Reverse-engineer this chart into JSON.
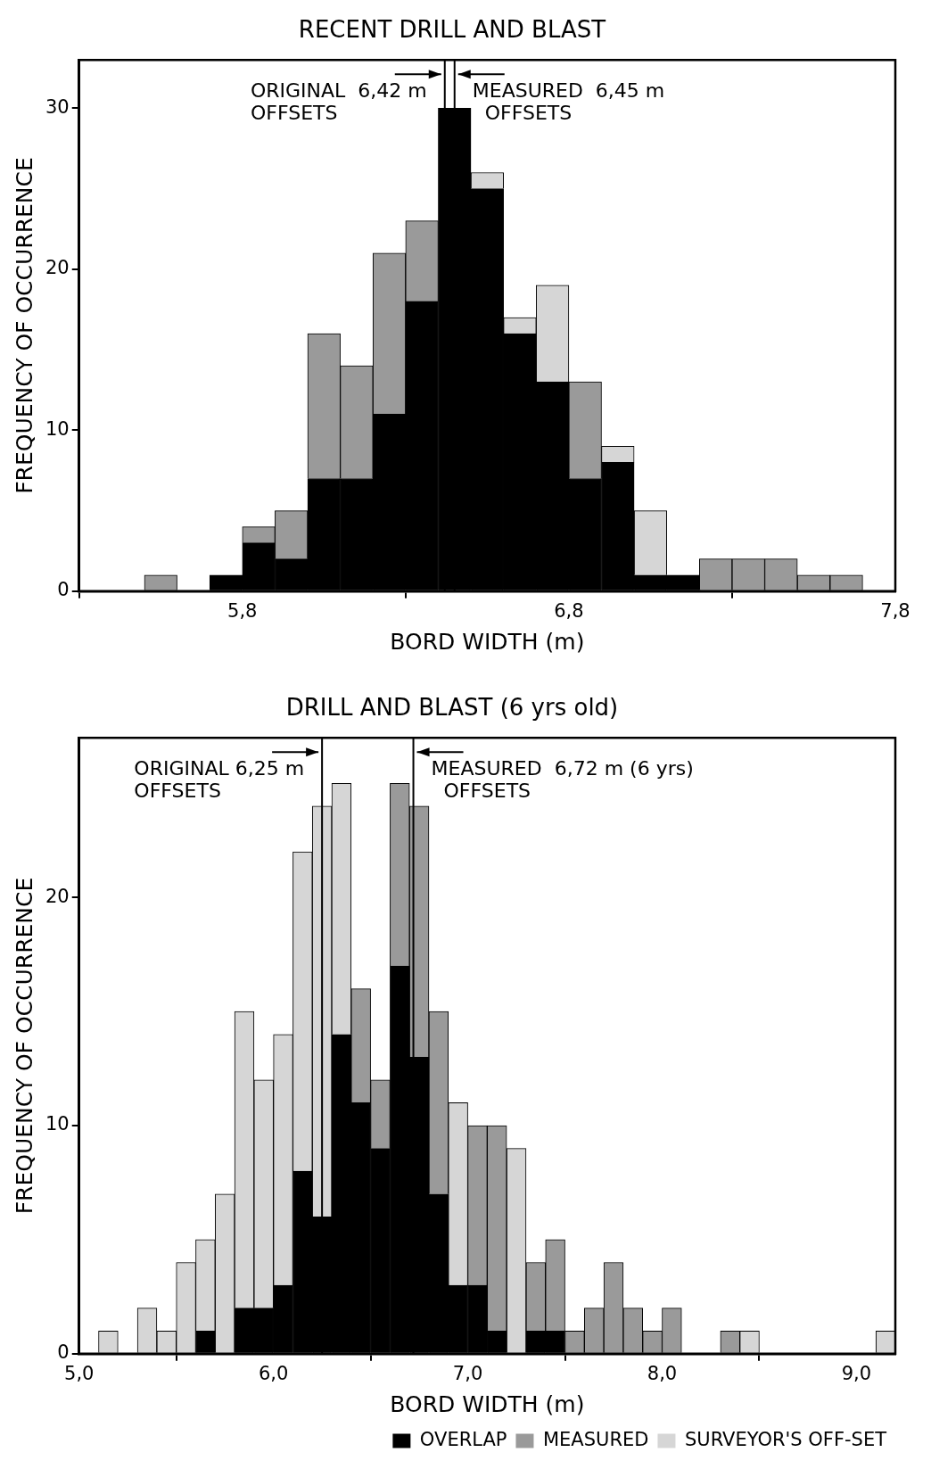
{
  "chart_data": [
    {
      "type": "bar",
      "title": "RECENT DRILL AND BLAST",
      "xlabel": "BORD WIDTH (m)",
      "ylabel": "FREQUENCY OF OCCURRENCE",
      "stacked": true,
      "grid": false,
      "x": [
        5.55,
        5.65,
        5.75,
        5.85,
        5.95,
        6.05,
        6.15,
        6.25,
        6.35,
        6.45,
        6.55,
        6.65,
        6.75,
        6.85,
        6.95,
        7.05,
        7.15,
        7.25,
        7.35,
        7.45,
        7.55,
        7.65
      ],
      "series": [
        {
          "color": "#000000",
          "values": [
            0,
            0,
            1,
            3,
            2,
            7,
            7,
            11,
            18,
            30,
            25,
            16,
            13,
            7,
            8,
            1,
            1,
            0,
            0,
            0,
            0,
            0
          ]
        },
        {
          "color": "#9a9a9a",
          "values": [
            1,
            0,
            0,
            1,
            3,
            9,
            7,
            10,
            5,
            0,
            0,
            0,
            0,
            6,
            0,
            0,
            0,
            2,
            2,
            2,
            1,
            1
          ]
        },
        {
          "color": "#d6d6d6",
          "values": [
            0,
            0,
            0,
            0,
            0,
            0,
            0,
            0,
            0,
            0,
            1,
            1,
            6,
            0,
            1,
            4,
            0,
            0,
            0,
            0,
            0,
            0
          ]
        }
      ],
      "xlim": [
        5.3,
        7.8
      ],
      "xticks": [
        {
          "value": 5.8,
          "label": "5,8"
        },
        {
          "value": 6.8,
          "label": "6,8"
        },
        {
          "value": 7.8,
          "label": "7,8"
        }
      ],
      "ylim": [
        0,
        33
      ],
      "yticks": [
        0,
        10,
        20,
        30
      ],
      "ref_lines": [
        {
          "axis": "x",
          "value": 6.42,
          "label": "ORIGINAL  6,42 m\nOFFSETS"
        },
        {
          "axis": "x",
          "value": 6.45,
          "label": "MEASURED  6,45 m\n  OFFSETS"
        }
      ]
    },
    {
      "type": "bar",
      "title": "DRILL AND BLAST (6 yrs old)",
      "xlabel": "BORD WIDTH (m)",
      "ylabel": "FREQUENCY OF OCCURRENCE",
      "stacked": true,
      "grid": false,
      "legend": "bottom right",
      "x": [
        5.15,
        5.25,
        5.35,
        5.45,
        5.55,
        5.65,
        5.75,
        5.85,
        5.95,
        6.05,
        6.15,
        6.25,
        6.35,
        6.45,
        6.55,
        6.65,
        6.75,
        6.85,
        6.95,
        7.05,
        7.15,
        7.25,
        7.35,
        7.45,
        7.55,
        7.65,
        7.75,
        7.85,
        7.95,
        8.05,
        8.15,
        8.25,
        8.35,
        8.45,
        8.55,
        8.65,
        8.75,
        8.85,
        8.95,
        9.05,
        9.15
      ],
      "series": [
        {
          "name": "OVERLAP",
          "color": "#000000",
          "values": [
            0,
            0,
            0,
            0,
            0,
            1,
            0,
            2,
            2,
            3,
            8,
            6,
            14,
            11,
            9,
            17,
            13,
            7,
            3,
            3,
            1,
            0,
            1,
            1,
            0,
            0,
            0,
            0,
            0,
            0,
            0,
            0,
            0,
            0,
            0,
            0,
            0,
            0,
            0,
            0,
            0
          ]
        },
        {
          "name": "MEASURED",
          "color": "#9a9a9a",
          "values": [
            0,
            0,
            0,
            0,
            0,
            0,
            0,
            0,
            0,
            0,
            0,
            0,
            0,
            5,
            3,
            8,
            11,
            8,
            0,
            7,
            9,
            0,
            3,
            4,
            1,
            2,
            4,
            2,
            1,
            2,
            0,
            0,
            1,
            0,
            0,
            0,
            0,
            0,
            0,
            0,
            0
          ]
        },
        {
          "name": "SURVEYOR'S OFF-SET",
          "color": "#d6d6d6",
          "values": [
            1,
            0,
            2,
            1,
            4,
            4,
            7,
            13,
            10,
            11,
            14,
            18,
            11,
            0,
            0,
            0,
            0,
            0,
            8,
            0,
            0,
            9,
            0,
            0,
            0,
            0,
            0,
            0,
            0,
            0,
            0,
            0,
            0,
            1,
            0,
            0,
            0,
            0,
            0,
            0,
            1
          ]
        }
      ],
      "xlim": [
        5.0,
        9.2
      ],
      "xticks": [
        {
          "value": 5.0,
          "label": "5,0"
        },
        {
          "value": 6.0,
          "label": "6,0"
        },
        {
          "value": 7.0,
          "label": "7,0"
        },
        {
          "value": 8.0,
          "label": "8,0"
        },
        {
          "value": 9.0,
          "label": "9,0"
        }
      ],
      "ylim": [
        0,
        27
      ],
      "yticks": [
        0,
        10,
        20
      ],
      "ref_lines": [
        {
          "axis": "x",
          "value": 6.25,
          "label": "ORIGINAL 6,25 m\nOFFSETS"
        },
        {
          "axis": "x",
          "value": 6.72,
          "label": "MEASURED  6,72 m (6 yrs)\n  OFFSETS"
        }
      ]
    }
  ]
}
